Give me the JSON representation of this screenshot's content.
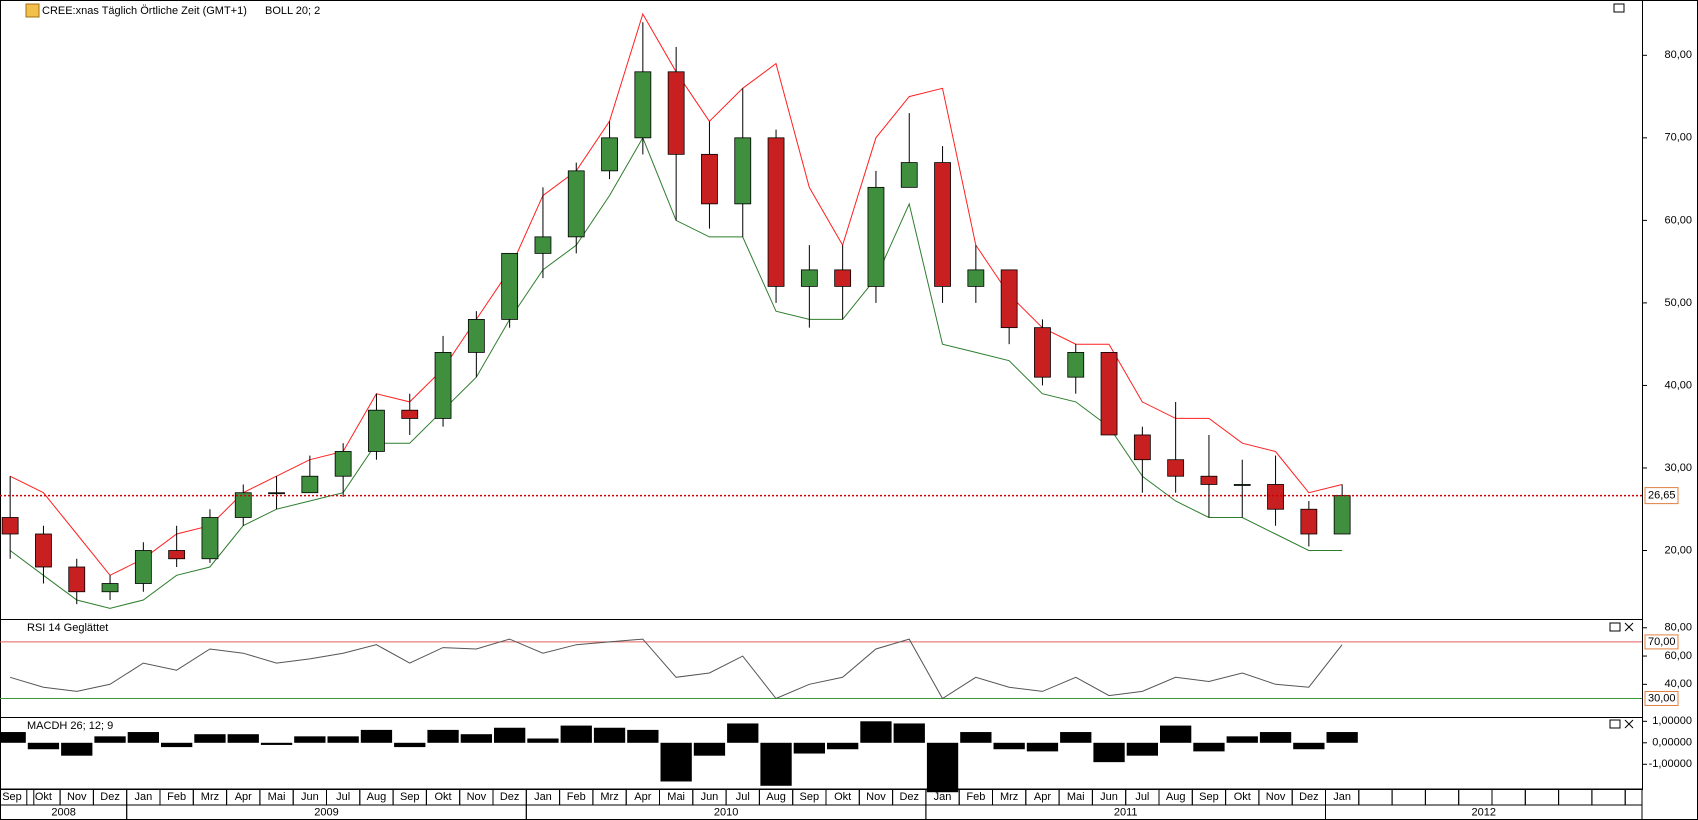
{
  "chart_data": [
    {
      "type": "candlestick",
      "title": "CREE:xnas Täglich Örtliche Zeit (GMT+1)",
      "indicator": "BOLL 20; 2",
      "indicator_color": "#e02020",
      "categories": [
        "Sep",
        "Okt",
        "Nov",
        "Dez",
        "Jan",
        "Feb",
        "Mrz",
        "Apr",
        "Mai",
        "Jun",
        "Jul",
        "Aug",
        "Sep",
        "Okt",
        "Nov",
        "Dez",
        "Jan",
        "Feb",
        "Mrz",
        "Apr",
        "Mai",
        "Jun",
        "Jul",
        "Aug",
        "Sep",
        "Okt",
        "Nov",
        "Dez",
        "Jan",
        "Feb",
        "Mrz",
        "Apr",
        "Mai",
        "Jun",
        "Jul",
        "Aug",
        "Sep",
        "Okt",
        "Nov",
        "Dez",
        "Jan"
      ],
      "years": [
        "2008",
        "2009",
        "2010",
        "2011",
        "2012"
      ],
      "open": [
        24,
        22,
        18,
        15,
        16,
        20,
        19,
        24,
        27,
        27,
        29,
        32,
        37,
        36,
        44,
        48,
        56,
        58,
        66,
        70,
        78,
        68,
        62,
        70,
        52,
        54,
        52,
        64,
        67,
        52,
        54,
        47,
        41,
        44,
        34,
        31,
        29,
        28,
        28,
        25,
        22
      ],
      "high": [
        29,
        23,
        19,
        17,
        21,
        23,
        25,
        28,
        29,
        31.5,
        33,
        39,
        39,
        46,
        49,
        56,
        64,
        67,
        72,
        84,
        81,
        72,
        76,
        71,
        57,
        57,
        66,
        73,
        69,
        57,
        54,
        48,
        45,
        44,
        35,
        38,
        34,
        31,
        31.5,
        26,
        28
      ],
      "low": [
        19,
        16,
        13.5,
        14,
        15,
        18,
        18.5,
        23,
        25,
        27,
        26.5,
        31,
        34,
        35,
        41,
        47,
        53,
        56,
        65,
        68,
        60,
        59,
        58,
        50,
        47,
        48,
        50,
        64,
        50,
        50,
        45,
        40,
        39,
        34,
        27,
        27,
        24,
        24,
        23,
        20.5,
        22
      ],
      "close": [
        22,
        18,
        15,
        16,
        20,
        19,
        24,
        27,
        27,
        29,
        32,
        37,
        36,
        44,
        48,
        56,
        58,
        66,
        70,
        78,
        68,
        62,
        70,
        52,
        54,
        52,
        64,
        67,
        52,
        54,
        47,
        41,
        44,
        34,
        31,
        29,
        28,
        28,
        25,
        22,
        26.65
      ],
      "up_color": "#3f8f3f",
      "down_color": "#c82020",
      "upper_band": {
        "color": "#ff2020",
        "values": [
          29,
          27,
          22,
          17,
          19,
          22,
          23,
          27,
          29,
          31,
          32,
          39,
          38,
          42,
          48,
          54,
          63,
          66,
          72,
          85,
          78,
          72,
          76,
          79,
          64,
          57,
          70,
          75,
          76,
          57,
          51,
          47,
          45,
          45,
          38,
          36,
          36,
          33,
          32,
          27,
          28
        ]
      },
      "lower_band": {
        "color": "#2e7d2e",
        "values": [
          20,
          17,
          14,
          13,
          14,
          17,
          18,
          23,
          25,
          26,
          27,
          33,
          33,
          37,
          41,
          48,
          54,
          57,
          63,
          70,
          60,
          58,
          58,
          49,
          48,
          48,
          53,
          62,
          45,
          44,
          43,
          39,
          38,
          35,
          29,
          26,
          24,
          24,
          22,
          20,
          20
        ]
      },
      "last_price": {
        "value": 26.65,
        "label": "26,65",
        "color": "#cc0000"
      },
      "ylim": [
        11.7,
        86.7
      ],
      "yticks": [
        {
          "value": 20,
          "label": "20,00"
        },
        {
          "value": 30,
          "label": "30,00"
        },
        {
          "value": 40,
          "label": "40,00"
        },
        {
          "value": 50,
          "label": "50,00"
        },
        {
          "value": 60,
          "label": "60,00"
        },
        {
          "value": 70,
          "label": "70,00"
        },
        {
          "value": 80,
          "label": "80,00"
        }
      ]
    },
    {
      "type": "line",
      "title": "RSI 14 Geglättet",
      "color": "#555555",
      "values": [
        45,
        38,
        35,
        40,
        55,
        50,
        65,
        62,
        55,
        58,
        62,
        68,
        55,
        66,
        65,
        72,
        62,
        68,
        70,
        72,
        45,
        48,
        60,
        30,
        40,
        45,
        65,
        72,
        30,
        45,
        38,
        35,
        45,
        32,
        35,
        45,
        42,
        48,
        40,
        38,
        68
      ],
      "levels": [
        {
          "value": 70,
          "label": "70,00",
          "color": "#e06060"
        },
        {
          "value": 30,
          "label": "30,00",
          "color": "#3a9a3a"
        }
      ],
      "ylim": [
        16.9,
        86.2
      ],
      "yticks": [
        {
          "value": 40,
          "label": "40,00"
        },
        {
          "value": 60,
          "label": "60,00"
        },
        {
          "value": 80,
          "label": "80,00"
        }
      ]
    },
    {
      "type": "bar",
      "title": "MACDH 26; 12; 9",
      "color": "#000000",
      "values": [
        0.5,
        -0.3,
        -0.6,
        0.3,
        0.5,
        -0.2,
        0.4,
        0.4,
        -0.1,
        0.3,
        0.3,
        0.6,
        -0.2,
        0.6,
        0.4,
        0.7,
        0.2,
        0.8,
        0.7,
        0.6,
        -1.8,
        -0.6,
        0.9,
        -2.0,
        -0.5,
        -0.3,
        1.0,
        0.9,
        -2.3,
        0.5,
        -0.3,
        -0.4,
        0.5,
        -0.9,
        -0.6,
        0.8,
        -0.4,
        0.3,
        0.5,
        -0.3,
        0.5
      ],
      "ylim": [
        -2.15,
        1.2
      ],
      "yticks": [
        {
          "value": 1,
          "label": "1,00000"
        },
        {
          "value": 0,
          "label": "0,00000"
        },
        {
          "value": -1,
          "label": "-1,00000"
        }
      ]
    }
  ]
}
